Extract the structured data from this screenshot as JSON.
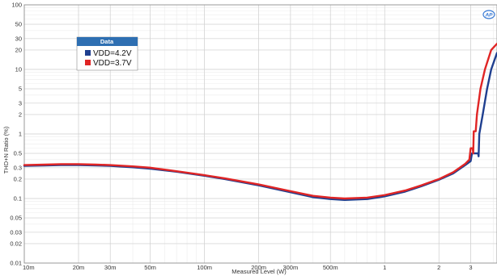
{
  "chart_data": {
    "type": "line",
    "xlabel": "Measured Level (W)",
    "ylabel": "THD+N Ratio (%)",
    "x_scale": "log",
    "y_scale": "log",
    "xlim": [
      0.01,
      4.2
    ],
    "ylim": [
      0.01,
      100
    ],
    "grid": true,
    "x_ticks": [
      {
        "value": 0.01,
        "label": "10m"
      },
      {
        "value": 0.02,
        "label": "20m"
      },
      {
        "value": 0.03,
        "label": "30m"
      },
      {
        "value": 0.05,
        "label": "50m"
      },
      {
        "value": 0.1,
        "label": "100m"
      },
      {
        "value": 0.2,
        "label": "200m"
      },
      {
        "value": 0.3,
        "label": "300m"
      },
      {
        "value": 0.5,
        "label": "500m"
      },
      {
        "value": 1,
        "label": "1"
      },
      {
        "value": 2,
        "label": "2"
      },
      {
        "value": 3,
        "label": "3"
      }
    ],
    "y_ticks": [
      {
        "value": 0.01,
        "label": "0.01"
      },
      {
        "value": 0.02,
        "label": "0.02"
      },
      {
        "value": 0.03,
        "label": "0.03"
      },
      {
        "value": 0.05,
        "label": "0.05"
      },
      {
        "value": 0.1,
        "label": "0.1"
      },
      {
        "value": 0.2,
        "label": "0.2"
      },
      {
        "value": 0.3,
        "label": "0.3"
      },
      {
        "value": 0.5,
        "label": "0.5"
      },
      {
        "value": 1,
        "label": "1"
      },
      {
        "value": 2,
        "label": "2"
      },
      {
        "value": 3,
        "label": "3"
      },
      {
        "value": 5,
        "label": "5"
      },
      {
        "value": 10,
        "label": "10"
      },
      {
        "value": 20,
        "label": "20"
      },
      {
        "value": 30,
        "label": "30"
      },
      {
        "value": 50,
        "label": "50"
      },
      {
        "value": 100,
        "label": "100"
      }
    ],
    "legend": {
      "title": "Data",
      "placement": "top-left"
    },
    "series": [
      {
        "name": "VDD=4.2V",
        "color": "#1f3f8f",
        "points": [
          [
            0.01,
            0.32
          ],
          [
            0.013,
            0.325
          ],
          [
            0.016,
            0.33
          ],
          [
            0.02,
            0.33
          ],
          [
            0.025,
            0.325
          ],
          [
            0.03,
            0.32
          ],
          [
            0.04,
            0.305
          ],
          [
            0.05,
            0.29
          ],
          [
            0.07,
            0.26
          ],
          [
            0.1,
            0.225
          ],
          [
            0.13,
            0.2
          ],
          [
            0.2,
            0.16
          ],
          [
            0.3,
            0.125
          ],
          [
            0.4,
            0.105
          ],
          [
            0.5,
            0.098
          ],
          [
            0.6,
            0.095
          ],
          [
            0.8,
            0.098
          ],
          [
            1.0,
            0.108
          ],
          [
            1.3,
            0.128
          ],
          [
            1.6,
            0.155
          ],
          [
            2.0,
            0.195
          ],
          [
            2.4,
            0.245
          ],
          [
            2.8,
            0.33
          ],
          [
            3.0,
            0.38
          ],
          [
            3.05,
            0.5
          ],
          [
            3.3,
            0.5
          ],
          [
            3.32,
            0.45
          ],
          [
            3.35,
            1.0
          ],
          [
            3.5,
            2.0
          ],
          [
            3.7,
            5.0
          ],
          [
            3.9,
            10.0
          ],
          [
            4.2,
            18.0
          ]
        ]
      },
      {
        "name": "VDD=3.7V",
        "color": "#e02525",
        "points": [
          [
            0.01,
            0.33
          ],
          [
            0.013,
            0.335
          ],
          [
            0.016,
            0.34
          ],
          [
            0.02,
            0.34
          ],
          [
            0.025,
            0.335
          ],
          [
            0.03,
            0.33
          ],
          [
            0.04,
            0.315
          ],
          [
            0.05,
            0.3
          ],
          [
            0.07,
            0.265
          ],
          [
            0.1,
            0.23
          ],
          [
            0.13,
            0.205
          ],
          [
            0.2,
            0.165
          ],
          [
            0.3,
            0.13
          ],
          [
            0.4,
            0.11
          ],
          [
            0.5,
            0.103
          ],
          [
            0.6,
            0.1
          ],
          [
            0.8,
            0.103
          ],
          [
            1.0,
            0.113
          ],
          [
            1.3,
            0.133
          ],
          [
            1.6,
            0.16
          ],
          [
            2.0,
            0.2
          ],
          [
            2.4,
            0.255
          ],
          [
            2.8,
            0.345
          ],
          [
            2.95,
            0.4
          ],
          [
            3.0,
            0.6
          ],
          [
            3.08,
            0.6
          ],
          [
            3.1,
            0.5
          ],
          [
            3.12,
            1.1
          ],
          [
            3.2,
            1.1
          ],
          [
            3.25,
            2.0
          ],
          [
            3.4,
            5.0
          ],
          [
            3.6,
            10.0
          ],
          [
            3.9,
            20.0
          ],
          [
            4.2,
            25.0
          ]
        ]
      }
    ]
  }
}
